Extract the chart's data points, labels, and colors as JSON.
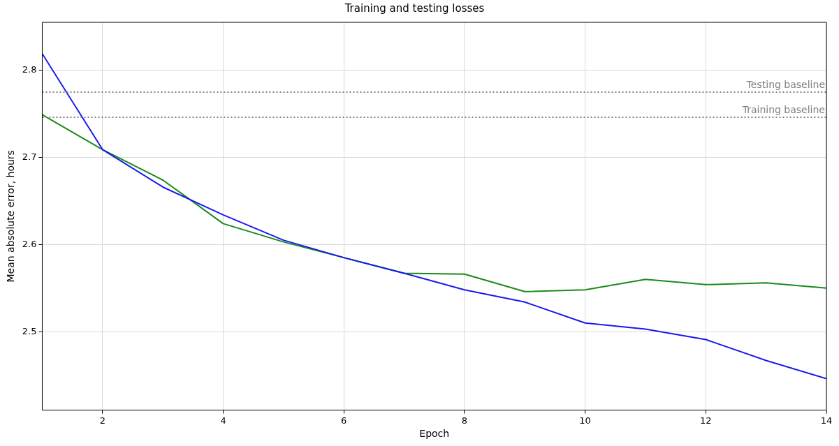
{
  "chart_data": {
    "type": "line",
    "title": "Training and testing losses",
    "xlabel": "Epoch",
    "ylabel": "Mean absolute error, hours",
    "x": [
      1,
      2,
      3,
      4,
      5,
      6,
      7,
      8,
      9,
      10,
      11,
      12,
      13,
      14
    ],
    "series": [
      {
        "color": "#1a1aee",
        "values": [
          2.819,
          2.709,
          2.666,
          2.634,
          2.605,
          2.585,
          2.567,
          2.548,
          2.534,
          2.51,
          2.503,
          2.491,
          2.467,
          2.446
        ]
      },
      {
        "color": "#1a8a1a",
        "values": [
          2.749,
          2.709,
          2.674,
          2.624,
          2.603,
          2.585,
          2.567,
          2.566,
          2.546,
          2.548,
          2.56,
          2.554,
          2.556,
          2.55
        ]
      }
    ],
    "xlim": [
      1,
      14
    ],
    "xticks": [
      2,
      4,
      6,
      8,
      10,
      12,
      14
    ],
    "ylim": [
      2.41,
      2.855
    ],
    "yticks": [
      2.5,
      2.6,
      2.7,
      2.8
    ],
    "ref_lines": [
      {
        "axis": "y",
        "value": 2.775,
        "label": "Testing baseline",
        "color": "#808080",
        "line_style": "dotted"
      },
      {
        "axis": "y",
        "value": 2.746,
        "label": "Training baseline",
        "color": "#808080",
        "line_style": "dotted"
      }
    ],
    "grid": true,
    "legend": false,
    "marker": "none",
    "line_style": "solid"
  }
}
